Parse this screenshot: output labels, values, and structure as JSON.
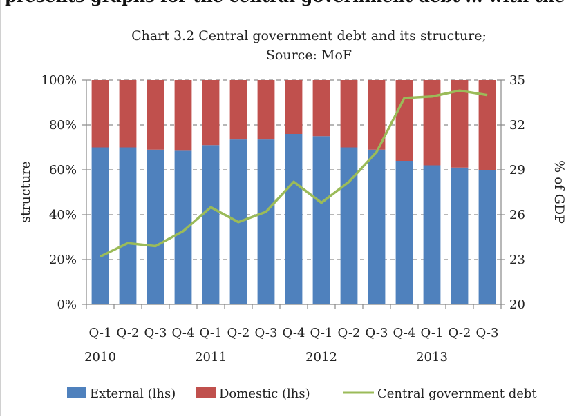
{
  "page": {
    "top_fragment": "presents graphs for the central government debt ... with the high"
  },
  "chart_data": {
    "type": "bar",
    "title_line1": "Chart 3.2 Central government debt and its structure;",
    "title_line2": "Source: MoF",
    "ylabel": "structure",
    "y2label": "% of GDP",
    "ylim": [
      0,
      100
    ],
    "y2lim": [
      20,
      35
    ],
    "yticks": [
      "0%",
      "20%",
      "40%",
      "60%",
      "80%",
      "100%"
    ],
    "yticks_values": [
      0,
      20,
      40,
      60,
      80,
      100
    ],
    "y2ticks": [
      "20",
      "23",
      "26",
      "29",
      "32",
      "35"
    ],
    "y2ticks_values": [
      20,
      23,
      26,
      29,
      32,
      35
    ],
    "grid": "horizontal dashed",
    "legend_position": "bottom",
    "categories": [
      "Q-1",
      "Q-2",
      "Q-3",
      "Q-4",
      "Q-1",
      "Q-2",
      "Q-3",
      "Q-4",
      "Q-1",
      "Q-2",
      "Q-3",
      "Q-4",
      "Q-1",
      "Q-2",
      "Q-3"
    ],
    "year_labels": [
      {
        "label": "2010",
        "start_index": 0
      },
      {
        "label": "2011",
        "start_index": 4
      },
      {
        "label": "2012",
        "start_index": 8
      },
      {
        "label": "2013",
        "start_index": 12
      }
    ],
    "series": [
      {
        "name": "External (lhs)",
        "kind": "stacked-bar",
        "axis": "left",
        "color": "#4f81bd",
        "values": [
          70,
          70,
          69,
          68.5,
          71,
          73.5,
          73.5,
          76,
          75,
          70,
          69,
          64,
          62,
          61,
          60
        ]
      },
      {
        "name": "Domestic (lhs)",
        "kind": "stacked-bar",
        "axis": "left",
        "color": "#c0504d",
        "values": [
          30,
          30,
          31,
          31.5,
          29,
          26.5,
          26.5,
          24,
          25,
          30,
          31,
          36,
          38,
          39,
          40
        ]
      },
      {
        "name": "Central government debt",
        "kind": "line",
        "axis": "right",
        "color": "#9bbb59",
        "values": [
          23.2,
          24.1,
          23.9,
          24.9,
          26.5,
          25.5,
          26.2,
          28.2,
          26.8,
          28.2,
          30.2,
          33.8,
          33.9,
          34.3,
          34.0
        ]
      }
    ]
  }
}
